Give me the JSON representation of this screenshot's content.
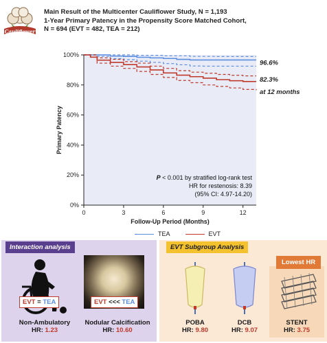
{
  "logo": {
    "icon": "cauliflower-logo",
    "text": "Cauliflower"
  },
  "title": {
    "line1": "Main Result of the Multicenter Cauliflower Study, N = 1,193",
    "line2": "1-Year Primary Patency in the Propensity Score Matched  Cohort,",
    "line3": "N = 694 (EVT = 482, TEA = 212)"
  },
  "chart_data": {
    "type": "line",
    "xlabel": "Follow-Up Period (Months)",
    "ylabel": "Primary Patency",
    "xlim": [
      0,
      13
    ],
    "ylim": [
      0,
      100
    ],
    "x_ticks": [
      0,
      3,
      6,
      9,
      12
    ],
    "y_ticks": [
      0,
      20,
      40,
      60,
      80,
      100
    ],
    "y_tick_labels": [
      "0%",
      "20%",
      "40%",
      "60%",
      "80%",
      "100%"
    ],
    "background": "#e9ebf7",
    "series": [
      {
        "name": "TEA",
        "color": "#5a8ee0",
        "points": [
          [
            0,
            100
          ],
          [
            1,
            100
          ],
          [
            2,
            99.2
          ],
          [
            3,
            99
          ],
          [
            4,
            98.4
          ],
          [
            5,
            98
          ],
          [
            6,
            97.6
          ],
          [
            7,
            97
          ],
          [
            8,
            96.6
          ],
          [
            9,
            96.6
          ],
          [
            10,
            96.6
          ],
          [
            11,
            96.6
          ],
          [
            12,
            96.6
          ],
          [
            13,
            96.6
          ]
        ],
        "ci_upper": [
          [
            0,
            100
          ],
          [
            2,
            100
          ],
          [
            4,
            99.7
          ],
          [
            6,
            99.4
          ],
          [
            8,
            99
          ],
          [
            10,
            98.9
          ],
          [
            13,
            98.9
          ]
        ],
        "ci_lower": [
          [
            0,
            100
          ],
          [
            1,
            99
          ],
          [
            2,
            97.5
          ],
          [
            3,
            96.8
          ],
          [
            4,
            95.8
          ],
          [
            5,
            95
          ],
          [
            6,
            94.2
          ],
          [
            7,
            93.4
          ],
          [
            8,
            92.6
          ],
          [
            9,
            92.5
          ],
          [
            10,
            92.5
          ],
          [
            13,
            92.5
          ]
        ]
      },
      {
        "name": "EVT",
        "color": "#c0392b",
        "points": [
          [
            0,
            100
          ],
          [
            0.5,
            98.5
          ],
          [
            1,
            96.5
          ],
          [
            2,
            95
          ],
          [
            3,
            93.5
          ],
          [
            4,
            92
          ],
          [
            5,
            90
          ],
          [
            6,
            88
          ],
          [
            7,
            86.5
          ],
          [
            8,
            85.5
          ],
          [
            9,
            84.5
          ],
          [
            10,
            83.5
          ],
          [
            11,
            82.8
          ],
          [
            12,
            82.3
          ],
          [
            13,
            82.3
          ]
        ],
        "ci_upper": [
          [
            0,
            100
          ],
          [
            1,
            98
          ],
          [
            2,
            97
          ],
          [
            3,
            95.5
          ],
          [
            4,
            94.5
          ],
          [
            5,
            92.5
          ],
          [
            6,
            91
          ],
          [
            7,
            89.5
          ],
          [
            8,
            88.5
          ],
          [
            9,
            87.8
          ],
          [
            10,
            87
          ],
          [
            11,
            86.4
          ],
          [
            12,
            86
          ],
          [
            13,
            86
          ]
        ],
        "ci_lower": [
          [
            0,
            100
          ],
          [
            1,
            94.5
          ],
          [
            2,
            92.5
          ],
          [
            3,
            91
          ],
          [
            4,
            89
          ],
          [
            5,
            87
          ],
          [
            6,
            85
          ],
          [
            7,
            83
          ],
          [
            8,
            81.5
          ],
          [
            9,
            80
          ],
          [
            10,
            79
          ],
          [
            11,
            78
          ],
          [
            12,
            77
          ],
          [
            13,
            76.5
          ]
        ]
      }
    ],
    "end_labels": {
      "tea": "96.6%",
      "evt": "82.3%",
      "note": "at 12 months"
    },
    "annotations": {
      "p_prefix": "P",
      "p_rest": " < 0.001 by stratified log-rank test",
      "hr": "HR for restenosis: 8.39",
      "ci": "(95% CI: 4.97-14.20)"
    },
    "legend": {
      "position": "bottom-center",
      "items": [
        "TEA",
        "EVT"
      ]
    }
  },
  "interaction": {
    "tag": "Interaction analysis",
    "compare1": {
      "evt": "EVT",
      "op": " = ",
      "tea": "TEA"
    },
    "compare2": {
      "evt": "EVT",
      "op": " <<< ",
      "tea": "TEA"
    },
    "item1": {
      "name": "Non-Ambulatory",
      "hr_label": "HR: ",
      "hr": "1.23",
      "icon": "wheelchair-icon"
    },
    "item2": {
      "name": "Nodular Calcification",
      "hr_label": "HR: ",
      "hr": "10.60"
    }
  },
  "subgroup": {
    "tag": "EVT Subgroup Analysis",
    "lowest_tag": "Lowest HR",
    "items": [
      {
        "name": "POBA",
        "hr_label": "HR: ",
        "hr": "9.80",
        "icon": "balloon-icon"
      },
      {
        "name": "DCB",
        "hr_label": "HR: ",
        "hr": "9.07",
        "icon": "drug-coated-balloon-icon"
      },
      {
        "name": "STENT",
        "hr_label": "HR: ",
        "hr": "3.75",
        "icon": "stent-icon"
      }
    ]
  },
  "colors": {
    "tea": "#5a8ee0",
    "evt": "#c0392b",
    "interaction_bg": "#ddd3ec",
    "subgroup_bg": "#fbe9d6",
    "highlight": "#e07a36"
  }
}
